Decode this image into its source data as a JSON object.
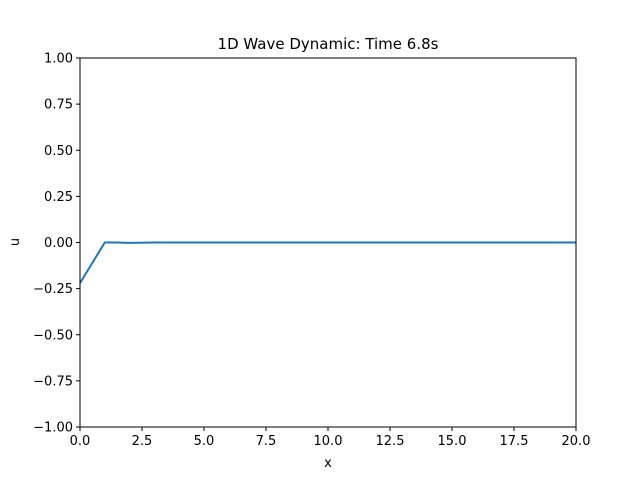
{
  "chart_data": {
    "type": "line",
    "title": "1D Wave Dynamic: Time 6.8s",
    "xlabel": "x",
    "ylabel": "u",
    "xlim": [
      0,
      20
    ],
    "ylim": [
      -1,
      1
    ],
    "grid": false,
    "x_ticks": [
      0,
      2.5,
      5,
      7.5,
      10,
      12.5,
      15,
      17.5,
      20
    ],
    "x_tick_labels": [
      "0.0",
      "2.5",
      "5.0",
      "7.5",
      "10.0",
      "12.5",
      "15.0",
      "17.5",
      "20.0"
    ],
    "y_ticks": [
      -1,
      -0.75,
      -0.5,
      -0.25,
      0,
      0.25,
      0.5,
      0.75,
      1
    ],
    "y_tick_labels": [
      "−1.00",
      "−0.75",
      "−0.50",
      "−0.25",
      "0.00",
      "0.25",
      "0.50",
      "0.75",
      "1.00"
    ],
    "series": [
      {
        "color": "#1f77b4",
        "x": [
          0,
          1,
          1.5,
          2,
          3,
          4,
          5,
          7.5,
          10,
          12.5,
          15,
          17.5,
          20
        ],
        "y": [
          -0.22,
          0.0,
          0.0,
          -0.002,
          0.0,
          0.0,
          0.0,
          0.0,
          0.0,
          0.0,
          0.0,
          0.0,
          0.0
        ]
      }
    ]
  }
}
